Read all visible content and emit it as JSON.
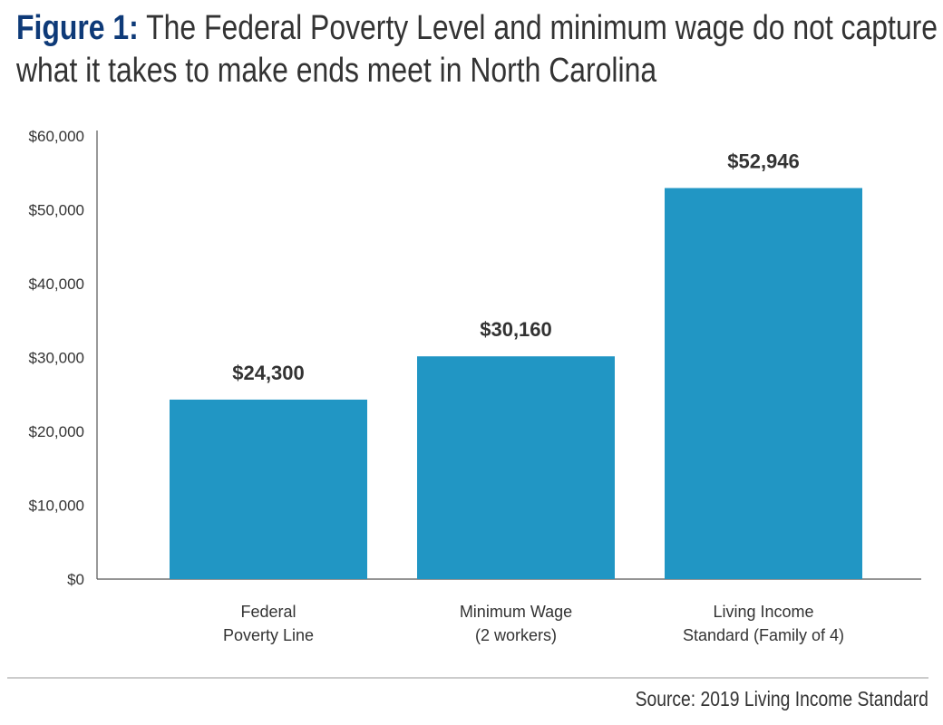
{
  "chart_data": {
    "type": "bar",
    "title_prefix": "Figure 1:",
    "title": "The Federal Poverty Level and minimum wage do not capture what it takes to make ends meet in North Carolina",
    "title_lines": [
      "The Federal Poverty Level and minimum wage do not capture",
      "what it takes to make ends meet in North Carolina"
    ],
    "categories": [
      [
        "Federal",
        "Poverty Line"
      ],
      [
        "Minimum Wage",
        "(2 workers)"
      ],
      [
        "Living Income",
        "Standard (Family of 4)"
      ]
    ],
    "values": [
      24300,
      30160,
      52946
    ],
    "data_labels": [
      "$24,300",
      "$30,160",
      "$52,946"
    ],
    "ylim": [
      0,
      60000
    ],
    "yticks": [
      0,
      10000,
      20000,
      30000,
      40000,
      50000,
      60000
    ],
    "ytick_labels": [
      "$0",
      "$10,000",
      "$20,000",
      "$30,000",
      "$40,000",
      "$50,000",
      "$60,000"
    ],
    "xlabel": "",
    "ylabel": "",
    "grid": false,
    "legend": "none",
    "bar_color": "#2196c4",
    "title_accent_color": "#0e3a78",
    "source": "Source: 2019 Living Income Standard"
  }
}
